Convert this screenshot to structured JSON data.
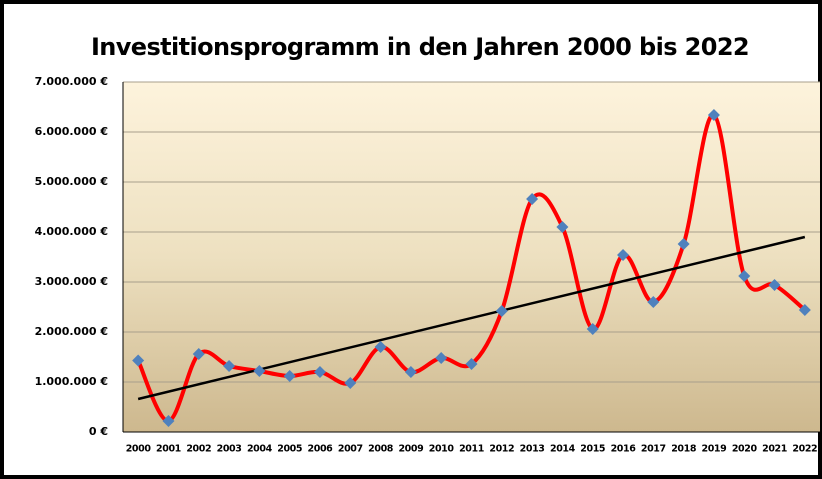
{
  "chart_data": {
    "type": "line",
    "title": "Investitionsprogramm in den Jahren 2000 bis 2022",
    "categories": [
      "2000",
      "2001",
      "2002",
      "2003",
      "2004",
      "2005",
      "2006",
      "2007",
      "2008",
      "2009",
      "2010",
      "2011",
      "2012",
      "2013",
      "2014",
      "2015",
      "2016",
      "2017",
      "2018",
      "2019",
      "2020",
      "2021",
      "2022"
    ],
    "series": [
      {
        "color": "#ff0000",
        "marker_color": "#4f81bd",
        "values": [
          1430000,
          220000,
          1560000,
          1320000,
          1220000,
          1120000,
          1200000,
          980000,
          1700000,
          1200000,
          1480000,
          1360000,
          2420000,
          4660000,
          4100000,
          2060000,
          3540000,
          2600000,
          3760000,
          6340000,
          3120000,
          2940000,
          2440000
        ]
      }
    ],
    "trendline": {
      "color": "#000000",
      "values": [
        660000,
        3900000
      ]
    },
    "ylim": [
      0,
      7000000
    ],
    "yticks": [
      {
        "value": 0,
        "label": "0 €"
      },
      {
        "value": 1000000,
        "label": "1.000.000 €"
      },
      {
        "value": 2000000,
        "label": "2.000.000 €"
      },
      {
        "value": 3000000,
        "label": "3.000.000 €"
      },
      {
        "value": 4000000,
        "label": "4.000.000 €"
      },
      {
        "value": 5000000,
        "label": "5.000.000 €"
      },
      {
        "value": 6000000,
        "label": "6.000.000 €"
      },
      {
        "value": 7000000,
        "label": "7.000.000 €"
      }
    ],
    "grid": true
  }
}
